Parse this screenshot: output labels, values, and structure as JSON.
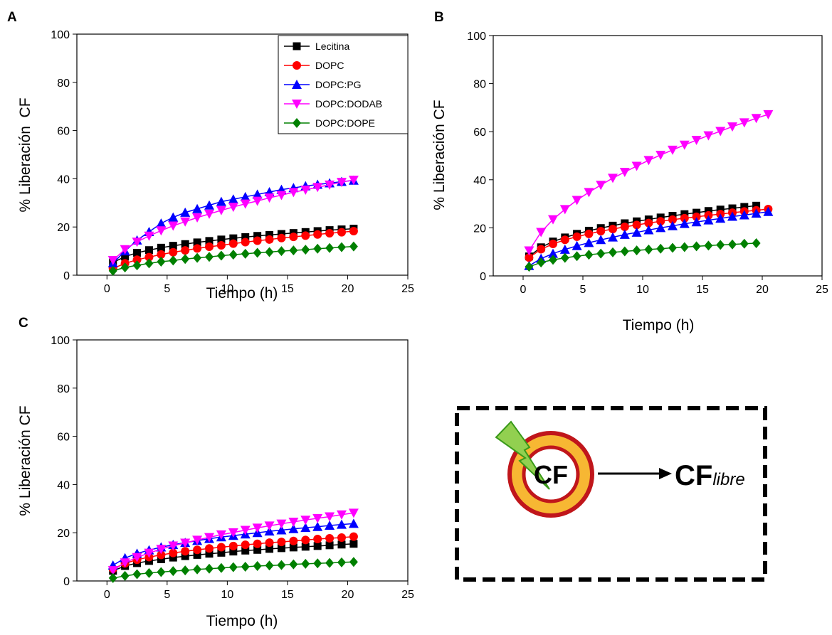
{
  "chart_data": [
    {
      "type": "line",
      "label": "A",
      "xlabel": "Tiempo (h)",
      "ylabel": "% Liberación  CF",
      "xlim": [
        -2.5,
        25
      ],
      "ylim": [
        0,
        100
      ],
      "xticks": [
        0,
        5,
        10,
        15,
        20,
        25
      ],
      "yticks": [
        0,
        20,
        40,
        60,
        80,
        100
      ],
      "legend": "upper right",
      "x": [
        0.5,
        1.5,
        2.5,
        3.5,
        4.5,
        5.5,
        6.5,
        7.5,
        8.5,
        9.5,
        10.5,
        11.5,
        12.5,
        13.5,
        14.5,
        15.5,
        16.5,
        17.5,
        18.5,
        19.5,
        20.5
      ],
      "series": [
        {
          "name": "Lecitina",
          "color": "#000000",
          "marker": "square",
          "values": [
            5.3,
            7.7,
            9.3,
            10.4,
            11.4,
            12.2,
            12.9,
            13.6,
            14.2,
            14.8,
            15.3,
            15.8,
            16.3,
            16.7,
            17.1,
            17.5,
            17.9,
            18.3,
            18.7,
            19.0,
            19.3
          ]
        },
        {
          "name": "DOPC",
          "color": "#ff0000",
          "marker": "circle",
          "values": [
            2.8,
            4.9,
            6.4,
            7.5,
            8.6,
            9.5,
            10.3,
            11.1,
            11.8,
            12.4,
            13.1,
            13.7,
            14.3,
            14.8,
            15.4,
            15.9,
            16.4,
            16.9,
            17.4,
            17.8,
            18.3
          ]
        },
        {
          "name": "DOPC:PG",
          "color": "#0000ff",
          "marker": "triangle-up",
          "values": [
            5,
            10,
            14.5,
            18,
            21.5,
            24,
            26,
            27.5,
            29,
            30.5,
            31.5,
            32.5,
            33.5,
            34.5,
            35.5,
            36.2,
            37,
            37.6,
            38.2,
            38.8,
            39.3
          ]
        },
        {
          "name": "DOPC:DODAB",
          "color": "#ff00ff",
          "marker": "triangle-down",
          "values": [
            6.2,
            10.7,
            13.8,
            16.3,
            18.5,
            20.5,
            22.2,
            23.9,
            25.4,
            26.9,
            28.3,
            29.6,
            30.8,
            32.1,
            33.2,
            34.4,
            35.4,
            36.5,
            37.5,
            38.6,
            39.5
          ]
        },
        {
          "name": "DOPC:DOPE",
          "color": "#008000",
          "marker": "diamond",
          "values": [
            1.8,
            3.2,
            4.1,
            4.9,
            5.6,
            6.1,
            6.7,
            7.2,
            7.6,
            8.1,
            8.5,
            8.9,
            9.3,
            9.6,
            10.0,
            10.3,
            10.6,
            11.0,
            11.3,
            11.6,
            11.9
          ]
        }
      ]
    },
    {
      "type": "line",
      "label": "B",
      "xlabel": "Tiempo (h)",
      "ylabel": "% Liberación CF",
      "xlim": [
        -2.5,
        25
      ],
      "ylim": [
        0,
        100
      ],
      "xticks": [
        0,
        5,
        10,
        15,
        20,
        25
      ],
      "yticks": [
        0,
        20,
        40,
        60,
        80,
        100
      ],
      "x": [
        0.5,
        1.5,
        2.5,
        3.5,
        4.5,
        5.5,
        6.5,
        7.5,
        8.5,
        9.5,
        10.5,
        11.5,
        12.5,
        13.5,
        14.5,
        15.5,
        16.5,
        17.5,
        18.5,
        19.5,
        20.5
      ],
      "series": [
        {
          "color": "#000000",
          "marker": "square",
          "values": [
            8.1,
            11.9,
            14.3,
            16.0,
            17.5,
            18.8,
            19.9,
            20.9,
            21.9,
            22.7,
            23.5,
            24.3,
            25.0,
            25.7,
            26.3,
            27.0,
            27.6,
            28.1,
            28.7,
            29.2,
            null
          ]
        },
        {
          "color": "#ff0000",
          "marker": "circle",
          "values": [
            7.6,
            11.1,
            13.3,
            15.0,
            16.3,
            17.5,
            18.6,
            19.5,
            20.4,
            21.2,
            22.0,
            22.7,
            23.4,
            24.0,
            24.6,
            25.2,
            25.7,
            26.3,
            26.8,
            27.3,
            27.8
          ]
        },
        {
          "color": "#0000ff",
          "marker": "triangle-up",
          "values": [
            4.2,
            7.2,
            9.3,
            11.0,
            12.5,
            13.8,
            15.0,
            16.1,
            17.2,
            18.1,
            19.1,
            20.0,
            20.8,
            21.7,
            22.4,
            23.2,
            23.9,
            24.7,
            25.3,
            26.0,
            26.7
          ]
        },
        {
          "color": "#ff00ff",
          "marker": "triangle-down",
          "values": [
            10.5,
            18.2,
            23.5,
            27.7,
            31.5,
            34.8,
            37.8,
            40.7,
            43.2,
            45.7,
            48.1,
            50.3,
            52.4,
            54.5,
            56.5,
            58.4,
            60.2,
            62.1,
            63.8,
            65.6,
            67.2
          ]
        },
        {
          "color": "#008000",
          "marker": "diamond",
          "values": [
            3.8,
            5.6,
            6.7,
            7.5,
            8.2,
            8.8,
            9.3,
            9.8,
            10.2,
            10.6,
            11.0,
            11.3,
            11.7,
            12.0,
            12.3,
            12.6,
            12.9,
            13.1,
            13.4,
            13.6,
            null
          ]
        }
      ]
    },
    {
      "type": "line",
      "label": "C",
      "xlabel": "Tiempo (h)",
      "ylabel": "% Liberación CF",
      "xlim": [
        -2.5,
        25
      ],
      "ylim": [
        0,
        100
      ],
      "xticks": [
        0,
        5,
        10,
        15,
        20,
        25
      ],
      "yticks": [
        0,
        20,
        40,
        60,
        80,
        100
      ],
      "x": [
        0.5,
        1.5,
        2.5,
        3.5,
        4.5,
        5.5,
        6.5,
        7.5,
        8.5,
        9.5,
        10.5,
        11.5,
        12.5,
        13.5,
        14.5,
        15.5,
        16.5,
        17.5,
        18.5,
        19.5,
        20.5
      ],
      "series": [
        {
          "color": "#000000",
          "marker": "square",
          "values": [
            4.2,
            6.2,
            7.4,
            8.3,
            9.0,
            9.7,
            10.3,
            10.8,
            11.3,
            11.7,
            12.2,
            12.6,
            12.9,
            13.3,
            13.6,
            13.9,
            14.2,
            14.5,
            14.8,
            15.1,
            15.4
          ]
        },
        {
          "color": "#ff0000",
          "marker": "circle",
          "values": [
            5.0,
            7.3,
            8.8,
            9.9,
            10.8,
            11.6,
            12.3,
            12.9,
            13.5,
            14.0,
            14.5,
            15.0,
            15.4,
            15.9,
            16.2,
            16.6,
            17.0,
            17.4,
            17.7,
            18.0,
            18.4
          ]
        },
        {
          "color": "#0000ff",
          "marker": "triangle-up",
          "values": [
            6.5,
            9.5,
            11.4,
            12.8,
            14.0,
            15.0,
            15.9,
            16.7,
            17.5,
            18.2,
            18.8,
            19.4,
            20.0,
            20.6,
            21.1,
            21.6,
            22.1,
            22.5,
            23.0,
            23.4,
            23.8
          ]
        },
        {
          "color": "#ff00ff",
          "marker": "triangle-down",
          "values": [
            4.4,
            7.6,
            9.8,
            11.6,
            13.2,
            14.6,
            15.8,
            17.0,
            18.1,
            19.2,
            20.1,
            21.1,
            22.0,
            22.9,
            23.7,
            24.5,
            25.3,
            26.0,
            26.7,
            27.5,
            28.2
          ]
        },
        {
          "color": "#008000",
          "marker": "diamond",
          "values": [
            1.2,
            2.1,
            2.8,
            3.3,
            3.7,
            4.1,
            4.4,
            4.8,
            5.1,
            5.4,
            5.7,
            5.9,
            6.2,
            6.4,
            6.6,
            6.9,
            7.1,
            7.3,
            7.5,
            7.7,
            7.9
          ]
        }
      ]
    }
  ],
  "diagram": {
    "inner_label": "CF",
    "released_label": "CF",
    "released_subscript": "libre"
  }
}
